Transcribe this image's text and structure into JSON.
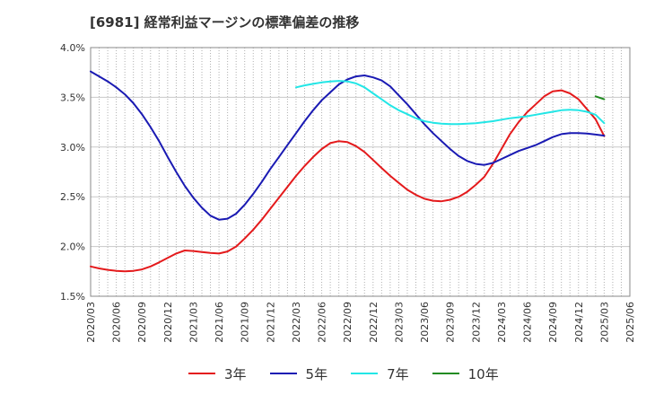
{
  "title": "[6981]  経常利益マージンの標準偏差の推移",
  "chart_data": {
    "type": "line",
    "title": "[6981]  経常利益マージンの標準偏差の推移",
    "xlabel": "",
    "ylabel": "",
    "x_ticks": [
      "2020/03",
      "2020/06",
      "2020/09",
      "2020/12",
      "2021/03",
      "2021/06",
      "2021/09",
      "2021/12",
      "2022/03",
      "2022/06",
      "2022/09",
      "2022/12",
      "2023/03",
      "2023/06",
      "2023/09",
      "2023/12",
      "2024/03",
      "2024/06",
      "2024/09",
      "2024/12",
      "2025/03",
      "2025/06"
    ],
    "y_ticks": [
      "1.5%",
      "2.0%",
      "2.5%",
      "3.0%",
      "3.5%",
      "4.0%"
    ],
    "ylim": [
      1.5,
      4.0
    ],
    "y_unit": "%",
    "grid": true,
    "legend_position": "bottom",
    "series": [
      {
        "name": "3年",
        "color": "#e41a1c",
        "x": [
          "2020/03",
          "2020/04",
          "2020/05",
          "2020/06",
          "2020/07",
          "2020/08",
          "2020/09",
          "2020/10",
          "2020/11",
          "2020/12",
          "2021/01",
          "2021/02",
          "2021/03",
          "2021/04",
          "2021/05",
          "2021/06",
          "2021/07",
          "2021/08",
          "2021/09",
          "2021/10",
          "2021/11",
          "2021/12",
          "2022/01",
          "2022/02",
          "2022/03",
          "2022/04",
          "2022/05",
          "2022/06",
          "2022/07",
          "2022/08",
          "2022/09",
          "2022/10",
          "2022/11",
          "2022/12",
          "2023/01",
          "2023/02",
          "2023/03",
          "2023/04",
          "2023/05",
          "2023/06",
          "2023/07",
          "2023/08",
          "2023/09",
          "2023/10",
          "2023/11",
          "2023/12",
          "2024/01",
          "2024/02",
          "2024/03",
          "2024/04",
          "2024/05",
          "2024/06",
          "2024/07",
          "2024/08",
          "2024/09",
          "2024/10",
          "2024/11",
          "2024/12",
          "2025/01",
          "2025/02",
          "2025/03"
        ],
        "values": [
          1.8,
          1.78,
          1.765,
          1.755,
          1.75,
          1.755,
          1.77,
          1.8,
          1.84,
          1.885,
          1.93,
          1.96,
          1.955,
          1.945,
          1.935,
          1.93,
          1.95,
          2.0,
          2.08,
          2.17,
          2.27,
          2.38,
          2.49,
          2.6,
          2.71,
          2.81,
          2.9,
          2.98,
          3.04,
          3.06,
          3.05,
          3.01,
          2.95,
          2.87,
          2.79,
          2.71,
          2.64,
          2.57,
          2.52,
          2.48,
          2.46,
          2.455,
          2.47,
          2.5,
          2.55,
          2.62,
          2.7,
          2.83,
          2.98,
          3.13,
          3.25,
          3.35,
          3.43,
          3.51,
          3.56,
          3.57,
          3.54,
          3.48,
          3.38,
          3.28,
          3.11
        ]
      },
      {
        "name": "5年",
        "color": "#1a1ab3",
        "x": [
          "2020/03",
          "2020/04",
          "2020/05",
          "2020/06",
          "2020/07",
          "2020/08",
          "2020/09",
          "2020/10",
          "2020/11",
          "2020/12",
          "2021/01",
          "2021/02",
          "2021/03",
          "2021/04",
          "2021/05",
          "2021/06",
          "2021/07",
          "2021/08",
          "2021/09",
          "2021/10",
          "2021/11",
          "2021/12",
          "2022/01",
          "2022/02",
          "2022/03",
          "2022/04",
          "2022/05",
          "2022/06",
          "2022/07",
          "2022/08",
          "2022/09",
          "2022/10",
          "2022/11",
          "2022/12",
          "2023/01",
          "2023/02",
          "2023/03",
          "2023/04",
          "2023/05",
          "2023/06",
          "2023/07",
          "2023/08",
          "2023/09",
          "2023/10",
          "2023/11",
          "2023/12",
          "2024/01",
          "2024/02",
          "2024/03",
          "2024/04",
          "2024/05",
          "2024/06",
          "2024/07",
          "2024/08",
          "2024/09",
          "2024/10",
          "2024/11",
          "2024/12",
          "2025/01",
          "2025/02",
          "2025/03"
        ],
        "values": [
          3.76,
          3.71,
          3.66,
          3.6,
          3.53,
          3.44,
          3.33,
          3.2,
          3.06,
          2.9,
          2.75,
          2.61,
          2.49,
          2.39,
          2.31,
          2.27,
          2.28,
          2.33,
          2.42,
          2.53,
          2.65,
          2.78,
          2.9,
          3.02,
          3.14,
          3.26,
          3.37,
          3.47,
          3.55,
          3.63,
          3.68,
          3.71,
          3.72,
          3.7,
          3.67,
          3.61,
          3.52,
          3.43,
          3.33,
          3.23,
          3.14,
          3.06,
          2.98,
          2.91,
          2.86,
          2.83,
          2.82,
          2.84,
          2.88,
          2.92,
          2.96,
          2.99,
          3.02,
          3.06,
          3.1,
          3.13,
          3.14,
          3.14,
          3.135,
          3.125,
          3.115
        ]
      },
      {
        "name": "7年",
        "color": "#22e6e6",
        "x": [
          "2022/03",
          "2022/04",
          "2022/05",
          "2022/06",
          "2022/07",
          "2022/08",
          "2022/09",
          "2022/10",
          "2022/11",
          "2022/12",
          "2023/01",
          "2023/02",
          "2023/03",
          "2023/04",
          "2023/05",
          "2023/06",
          "2023/07",
          "2023/08",
          "2023/09",
          "2023/10",
          "2023/11",
          "2023/12",
          "2024/01",
          "2024/02",
          "2024/03",
          "2024/04",
          "2024/05",
          "2024/06",
          "2024/07",
          "2024/08",
          "2024/09",
          "2024/10",
          "2024/11",
          "2024/12",
          "2025/01",
          "2025/02",
          "2025/03"
        ],
        "values": [
          3.6,
          3.62,
          3.635,
          3.65,
          3.66,
          3.665,
          3.66,
          3.64,
          3.6,
          3.54,
          3.48,
          3.42,
          3.37,
          3.33,
          3.29,
          3.26,
          3.245,
          3.235,
          3.23,
          3.23,
          3.235,
          3.24,
          3.25,
          3.26,
          3.275,
          3.29,
          3.3,
          3.31,
          3.325,
          3.34,
          3.355,
          3.37,
          3.375,
          3.37,
          3.355,
          3.325,
          3.24
        ]
      },
      {
        "name": "10年",
        "color": "#228b22",
        "x": [
          "2025/02",
          "2025/03"
        ],
        "values": [
          3.51,
          3.48
        ]
      }
    ]
  }
}
